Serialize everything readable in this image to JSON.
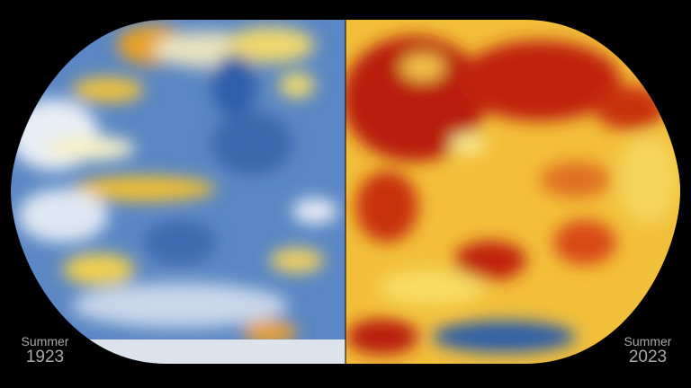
{
  "left_label": {
    "season": "Summer",
    "year": "1923"
  },
  "right_label": {
    "season": "Summer",
    "year": "2023"
  }
}
